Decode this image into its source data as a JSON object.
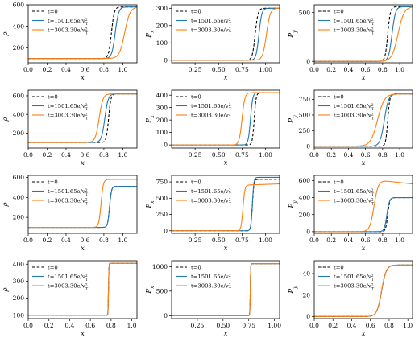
{
  "legend": {
    "entries": [
      "t=0",
      "t=1501.65e/v",
      "t=3003.30e/v"
    ],
    "colors": [
      "#000000",
      "#1f77b4",
      "#ff7f0e"
    ],
    "superscript": "2",
    "subscript": "T",
    "placement": "upper-left"
  },
  "chart_data": [
    {
      "type": "line",
      "ylabel": "ρ",
      "xlabel": "x",
      "xlim": [
        0,
        1.15
      ],
      "ylim": [
        60,
        600
      ],
      "xticks": [
        0.0,
        0.2,
        0.4,
        0.6,
        0.8,
        1.0
      ],
      "xtick_labels": [
        "0.0",
        "0.2",
        "0.4",
        "0.6",
        "0.8",
        "1.0"
      ],
      "yticks": [
        200,
        400,
        600
      ],
      "ytick_labels": [
        "200",
        "400",
        "600"
      ],
      "series": [
        {
          "name": "t=0",
          "style": "dashed",
          "base": 100,
          "top": 580,
          "x0": 0.88,
          "w": 0.015
        },
        {
          "name": "t=1501.65e/v",
          "style": "solid",
          "base": 100,
          "top": 580,
          "x0": 0.92,
          "w": 0.018
        },
        {
          "name": "t=3003.30e/v",
          "style": "solid",
          "base": 100,
          "top": 580,
          "x0": 1.02,
          "w": 0.028
        }
      ]
    },
    {
      "type": "line",
      "ylabel": "P_x",
      "xlabel": "x",
      "xlim": [
        0,
        1.15
      ],
      "ylim": [
        -15,
        320
      ],
      "xticks": [
        0.25,
        0.5,
        0.75,
        1.0
      ],
      "xtick_labels": [
        "0.25",
        "0.50",
        "0.75",
        "1.00"
      ],
      "yticks": [
        0,
        100,
        200,
        300
      ],
      "ytick_labels": [
        "0",
        "100",
        "200",
        "300"
      ],
      "series": [
        {
          "name": "t=0",
          "style": "dashed",
          "base": 0,
          "top": 300,
          "x0": 0.89,
          "w": 0.015
        },
        {
          "name": "t=1501.65e/v",
          "style": "solid",
          "base": 0,
          "top": 300,
          "x0": 0.93,
          "w": 0.015
        },
        {
          "name": "t=3003.30e/v",
          "style": "solid",
          "base": 0,
          "top": 300,
          "x0": 1.01,
          "w": 0.02
        }
      ]
    },
    {
      "type": "line",
      "ylabel": "P_y",
      "xlabel": "x",
      "xlim": [
        0,
        1.15
      ],
      "ylim": [
        -15,
        580
      ],
      "xticks": [
        0.0,
        0.2,
        0.4,
        0.6,
        0.8,
        1.0
      ],
      "xtick_labels": [
        "0.0",
        "0.2",
        "0.4",
        "0.6",
        "0.8",
        "1.0"
      ],
      "yticks": [
        0,
        500
      ],
      "ytick_labels": [
        "0",
        "500"
      ],
      "series": [
        {
          "name": "t=0",
          "style": "dashed",
          "base": 0,
          "top": 560,
          "x0": 0.86,
          "w": 0.015
        },
        {
          "name": "t=1501.65e/v",
          "style": "solid",
          "base": 0,
          "top": 560,
          "x0": 0.91,
          "w": 0.02
        },
        {
          "name": "t=3003.30e/v",
          "style": "solid",
          "base": 0,
          "top": 560,
          "x0": 0.98,
          "w": 0.035
        }
      ]
    },
    {
      "type": "line",
      "ylabel": "ρ",
      "xlabel": "x",
      "xlim": [
        0,
        1.15
      ],
      "ylim": [
        40,
        660
      ],
      "xticks": [
        0.0,
        0.2,
        0.4,
        0.6,
        0.8,
        1.0
      ],
      "xtick_labels": [
        "0.0",
        "0.2",
        "0.4",
        "0.6",
        "0.8",
        "1.0"
      ],
      "yticks": [
        200,
        400,
        600
      ],
      "ytick_labels": [
        "200",
        "400",
        "600"
      ],
      "series": [
        {
          "name": "t=0",
          "style": "dashed",
          "base": 100,
          "top": 620,
          "x0": 0.85,
          "w": 0.012
        },
        {
          "name": "t=1501.65e/v",
          "style": "solid",
          "base": 100,
          "top": 620,
          "x0": 0.81,
          "w": 0.018
        },
        {
          "name": "t=3003.30e/v",
          "style": "solid",
          "base": 100,
          "top": 620,
          "x0": 0.75,
          "w": 0.02
        }
      ]
    },
    {
      "type": "line",
      "ylabel": "P_x",
      "xlabel": "x",
      "xlim": [
        0,
        1.15
      ],
      "ylim": [
        -25,
        440
      ],
      "xticks": [
        0.25,
        0.5,
        0.75,
        1.0
      ],
      "xtick_labels": [
        "0.25",
        "0.50",
        "0.75",
        "1.00"
      ],
      "yticks": [
        0,
        100,
        200,
        300,
        400
      ],
      "ytick_labels": [
        "0",
        "100",
        "200",
        "300",
        "400"
      ],
      "series": [
        {
          "name": "t=0",
          "style": "dashed",
          "base": 0,
          "top": 420,
          "x0": 0.88,
          "w": 0.01
        },
        {
          "name": "t=1501.65e/v",
          "style": "solid",
          "base": 0,
          "top": 420,
          "x0": 0.84,
          "w": 0.012
        },
        {
          "name": "t=3003.30e/v",
          "style": "solid",
          "base": 0,
          "top": 420,
          "x0": 0.75,
          "w": 0.015
        }
      ]
    },
    {
      "type": "line",
      "ylabel": "P_y",
      "xlabel": "x",
      "xlim": [
        0,
        1.15
      ],
      "ylim": [
        -30,
        900
      ],
      "xticks": [
        0.0,
        0.2,
        0.4,
        0.6,
        0.8,
        1.0
      ],
      "xtick_labels": [
        "0.0",
        "0.2",
        "0.4",
        "0.6",
        "0.8",
        "1.0"
      ],
      "yticks": [
        0,
        250,
        500,
        750
      ],
      "ytick_labels": [
        "0",
        "250",
        "500",
        "750"
      ],
      "series": [
        {
          "name": "t=0",
          "style": "dashed",
          "base": 0,
          "top": 840,
          "x0": 0.86,
          "w": 0.012
        },
        {
          "name": "t=1501.65e/v",
          "style": "solid",
          "base": 0,
          "top": 840,
          "x0": 0.82,
          "w": 0.025
        },
        {
          "name": "t=3003.30e/v",
          "style": "solid",
          "base": 0,
          "top": 840,
          "x0": 0.74,
          "w": 0.04
        }
      ]
    },
    {
      "type": "line",
      "ylabel": "ρ",
      "xlabel": "x",
      "xlim": [
        0,
        1.15
      ],
      "ylim": [
        40,
        620
      ],
      "xticks": [
        0.0,
        0.2,
        0.4,
        0.6,
        0.8,
        1.0
      ],
      "xtick_labels": [
        "0.0",
        "0.2",
        "0.4",
        "0.6",
        "0.8",
        "1.0"
      ],
      "yticks": [
        200,
        400,
        600
      ],
      "ytick_labels": [
        "200",
        "400",
        "600"
      ],
      "series": [
        {
          "name": "t=0",
          "style": "dashed",
          "base": 100,
          "top": 510,
          "x0": 0.86,
          "w": 0.01
        },
        {
          "name": "t=1501.65e/v",
          "style": "solid",
          "base": 100,
          "top": 510,
          "x0": 0.86,
          "w": 0.01
        },
        {
          "name": "t=3003.30e/v",
          "style": "solid",
          "base": 100,
          "top": 580,
          "x0": 0.77,
          "w": 0.012
        }
      ]
    },
    {
      "type": "line",
      "ylabel": "P_x",
      "xlabel": "x",
      "xlim": [
        0,
        1.15
      ],
      "ylim": [
        -40,
        850
      ],
      "xticks": [
        0.25,
        0.5,
        0.75,
        1.0
      ],
      "xtick_labels": [
        "0.25",
        "0.50",
        "0.75",
        "1.00"
      ],
      "yticks": [
        0,
        250,
        500,
        750
      ],
      "ytick_labels": [
        "0",
        "250",
        "500",
        "750"
      ],
      "series": [
        {
          "name": "t=0",
          "style": "dashed",
          "base": 0,
          "top": 790,
          "x0": 0.86,
          "w": 0.008
        },
        {
          "name": "t=1501.65e/v",
          "style": "solid",
          "base": 0,
          "top": 820,
          "x0": 0.86,
          "w": 0.008
        },
        {
          "name": "t=3003.30e/v",
          "style": "solid",
          "base": 0,
          "top": 700,
          "x0": 0.76,
          "w": 0.01,
          "tail": 720
        }
      ]
    },
    {
      "type": "line",
      "ylabel": "P_y",
      "xlabel": "x",
      "xlim": [
        0,
        1.15
      ],
      "ylim": [
        -20,
        660
      ],
      "xticks": [
        0.0,
        0.2,
        0.4,
        0.6,
        0.8,
        1.0
      ],
      "xtick_labels": [
        "0.0",
        "0.2",
        "0.4",
        "0.6",
        "0.8",
        "1.0"
      ],
      "yticks": [
        0,
        200,
        400,
        600
      ],
      "ytick_labels": [
        "0",
        "200",
        "400",
        "600"
      ],
      "series": [
        {
          "name": "t=0",
          "style": "dashed",
          "base": 0,
          "top": 400,
          "x0": 0.86,
          "w": 0.012
        },
        {
          "name": "t=1501.65e/v",
          "style": "solid",
          "base": 0,
          "top": 400,
          "x0": 0.85,
          "w": 0.015
        },
        {
          "name": "t=3003.30e/v",
          "style": "solid",
          "base": 0,
          "top": 610,
          "x0": 0.7,
          "w": 0.025,
          "tail": 560
        }
      ]
    },
    {
      "type": "line",
      "ylabel": "ρ",
      "xlabel": "x",
      "xlim": [
        0,
        1.05
      ],
      "ylim": [
        80,
        420
      ],
      "xticks": [
        0.0,
        0.2,
        0.4,
        0.6,
        0.8,
        1.0
      ],
      "xtick_labels": [
        "0.0",
        "0.2",
        "0.4",
        "0.6",
        "0.8",
        "1.0"
      ],
      "yticks": [
        100,
        200,
        300,
        400
      ],
      "ytick_labels": [
        "100",
        "200",
        "300",
        "400"
      ],
      "series": [
        {
          "name": "t=0",
          "style": "dashed",
          "base": 100,
          "top": 405,
          "x0": 0.775,
          "w": 0.002
        },
        {
          "name": "t=1501.65e/v",
          "style": "solid",
          "base": 100,
          "top": 405,
          "x0": 0.775,
          "w": 0.002
        },
        {
          "name": "t=3003.30e/v",
          "style": "solid",
          "base": 100,
          "top": 405,
          "x0": 0.775,
          "w": 0.002
        }
      ]
    },
    {
      "type": "line",
      "ylabel": "P_x",
      "xlabel": "x",
      "xlim": [
        0,
        1.05
      ],
      "ylim": [
        -60,
        1120
      ],
      "xticks": [
        0.25,
        0.5,
        0.75,
        1.0
      ],
      "xtick_labels": [
        "0.25",
        "0.50",
        "0.75",
        "1.00"
      ],
      "yticks": [
        0,
        500,
        1000
      ],
      "ytick_labels": [
        "0",
        "500",
        "1000"
      ],
      "series": [
        {
          "name": "t=0",
          "style": "dashed",
          "base": 0,
          "top": 1060,
          "x0": 0.765,
          "w": 0.002
        },
        {
          "name": "t=1501.65e/v",
          "style": "solid",
          "base": 0,
          "top": 1060,
          "x0": 0.765,
          "w": 0.002
        },
        {
          "name": "t=3003.30e/v",
          "style": "solid",
          "base": 0,
          "top": 1060,
          "x0": 0.765,
          "w": 0.002
        }
      ]
    },
    {
      "type": "line",
      "ylabel": "P_y",
      "xlabel": "x",
      "xlim": [
        0,
        1.05
      ],
      "ylim": [
        -2,
        52
      ],
      "xticks": [
        0.0,
        0.2,
        0.4,
        0.6,
        0.8,
        1.0
      ],
      "xtick_labels": [
        "0.0",
        "0.2",
        "0.4",
        "0.6",
        "0.8",
        "1.0"
      ],
      "yticks": [
        0,
        20,
        40
      ],
      "ytick_labels": [
        "0",
        "20",
        "40"
      ],
      "series": [
        {
          "name": "t=0",
          "style": "dashed",
          "base": 0,
          "top": 48,
          "x0": 0.72,
          "w": 0.025
        },
        {
          "name": "t=1501.65e/v",
          "style": "solid",
          "base": 0,
          "top": 48,
          "x0": 0.72,
          "w": 0.025
        },
        {
          "name": "t=3003.30e/v",
          "style": "solid",
          "base": 0,
          "top": 48,
          "x0": 0.72,
          "w": 0.025
        }
      ]
    }
  ]
}
